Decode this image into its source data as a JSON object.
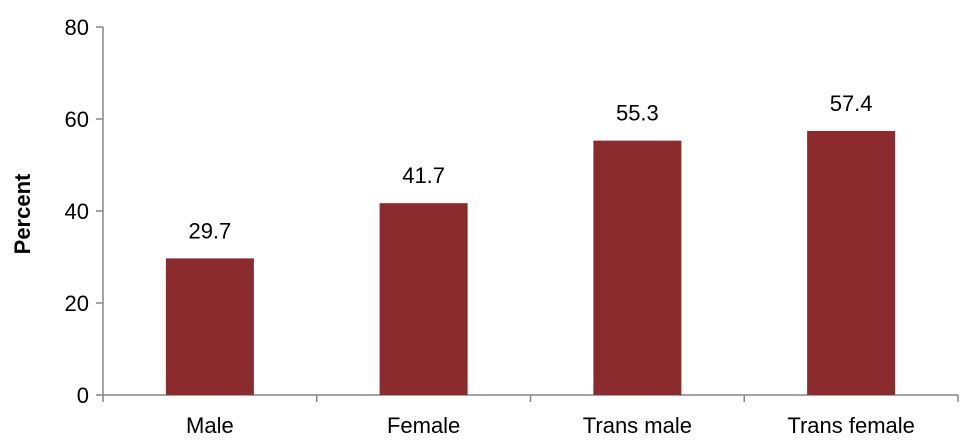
{
  "chart_data": {
    "type": "bar",
    "title": "",
    "xlabel": "",
    "ylabel": "Percent",
    "categories": [
      "Male",
      "Female",
      "Trans male",
      "Trans female"
    ],
    "values": [
      29.7,
      41.7,
      55.3,
      57.4
    ],
    "data_labels": [
      "29.7",
      "41.7",
      "55.3",
      "57.4"
    ],
    "ylim": [
      0,
      80
    ],
    "yticks": [
      0,
      20,
      40,
      60,
      80
    ],
    "grid": false,
    "legend": "none",
    "bar_color": "#8B2B2E"
  }
}
